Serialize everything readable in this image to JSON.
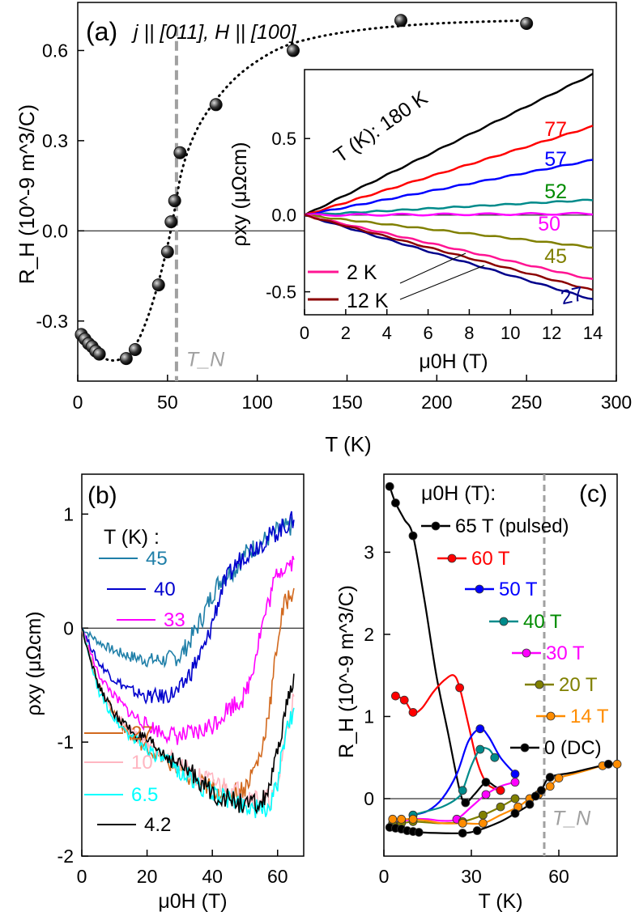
{
  "chart_data": [
    {
      "panel": "a",
      "type": "scatter",
      "panel_label": "(a)",
      "annotation": "j || [011], H || [100]",
      "xlabel": "T (K)",
      "ylabel": "R_H (10^-9 m^3/C)",
      "xlim": [
        0,
        300
      ],
      "ylim": [
        -0.5,
        0.76
      ],
      "xticks": [
        0,
        50,
        100,
        150,
        200,
        250,
        300
      ],
      "yticks": [
        -0.3,
        0.0,
        0.3,
        0.6
      ],
      "ytick_labels": [
        "-0.3",
        "0.0",
        "0.3",
        "0.6"
      ],
      "tn_label": "T_N",
      "tn_value": 55,
      "points": {
        "x": [
          2,
          4,
          6,
          8,
          10,
          12,
          27,
          32,
          45,
          50,
          52,
          54,
          57,
          77,
          120,
          180,
          250
        ],
        "y": [
          -0.345,
          -0.36,
          -0.375,
          -0.385,
          -0.4,
          -0.41,
          -0.425,
          -0.395,
          -0.18,
          -0.07,
          0.03,
          0.1,
          0.26,
          0.42,
          0.6,
          0.7,
          0.69
        ]
      },
      "fit_curve": {
        "x": [
          2,
          8,
          15,
          22,
          28,
          34,
          40,
          45,
          50,
          54,
          58,
          65,
          75,
          90,
          110,
          130,
          160,
          200,
          250
        ],
        "y": [
          -0.33,
          -0.39,
          -0.425,
          -0.43,
          -0.41,
          -0.36,
          -0.27,
          -0.17,
          -0.05,
          0.07,
          0.2,
          0.32,
          0.42,
          0.52,
          0.6,
          0.64,
          0.67,
          0.69,
          0.7
        ]
      }
    },
    {
      "panel": "a-inset",
      "type": "line",
      "xlabel": "μ0H (T)",
      "ylabel": "ρxy (μΩcm)",
      "xlim": [
        0,
        14
      ],
      "ylim": [
        -0.65,
        0.95
      ],
      "xticks": [
        0,
        2,
        4,
        6,
        8,
        10,
        12,
        14
      ],
      "yticks": [
        -0.5,
        0.0,
        0.5
      ],
      "ytick_labels": [
        "-0.5",
        "0.0",
        "0.5"
      ],
      "header_label": "T (K): 180 K",
      "series": [
        {
          "name": "180 K",
          "label": "",
          "color": "#000000",
          "end": 0.92
        },
        {
          "name": "77",
          "label": "77",
          "color": "#ff0000",
          "end": 0.58
        },
        {
          "name": "57",
          "label": "57",
          "color": "#0000ff",
          "end": 0.36
        },
        {
          "name": "52",
          "label": "52",
          "color": "#008b8b",
          "end": 0.1
        },
        {
          "name": "50",
          "label": "50",
          "color": "#ff00ff",
          "end": 0.01
        },
        {
          "name": "45",
          "label": "45",
          "color": "#808000",
          "end": -0.21
        },
        {
          "name": "27",
          "label": "27",
          "color": "#00008b",
          "end": -0.55
        },
        {
          "name": "2 K",
          "label": "2 K",
          "color": "#ff1493",
          "end": -0.42
        },
        {
          "name": "12 K",
          "label": "12 K",
          "color": "#8b0000",
          "end": -0.49
        }
      ]
    },
    {
      "panel": "b",
      "type": "line",
      "panel_label": "(b)",
      "legend_title": "T (K) :",
      "xlabel": "μ0H (T)",
      "ylabel": "ρxy (μΩcm)",
      "xlim": [
        0,
        68
      ],
      "ylim": [
        -2.0,
        1.35
      ],
      "xticks": [
        0,
        20,
        40,
        60
      ],
      "yticks": [
        -2,
        -1,
        0,
        1
      ],
      "ytick_labels": [
        "-2",
        "-1",
        "0",
        "1"
      ],
      "series": [
        {
          "name": "45",
          "color": "#1f7fa8",
          "x": [
            0,
            5,
            10,
            15,
            20,
            25,
            30,
            33,
            37,
            40,
            43,
            47,
            50,
            55,
            60,
            65
          ],
          "y": [
            0.0,
            -0.12,
            -0.2,
            -0.25,
            -0.28,
            -0.28,
            -0.25,
            -0.12,
            0.1,
            0.3,
            0.45,
            0.52,
            0.65,
            0.75,
            0.85,
            0.9
          ]
        },
        {
          "name": "40",
          "color": "#0000cd",
          "x": [
            0,
            5,
            10,
            15,
            20,
            25,
            30,
            35,
            38,
            40,
            43,
            47,
            50,
            55,
            60,
            65
          ],
          "y": [
            0.0,
            -0.3,
            -0.45,
            -0.55,
            -0.6,
            -0.6,
            -0.55,
            -0.3,
            -0.15,
            0.05,
            0.35,
            0.55,
            0.65,
            0.75,
            0.85,
            0.95
          ]
        },
        {
          "name": "33",
          "color": "#ff00ff",
          "x": [
            0,
            5,
            10,
            15,
            20,
            25,
            30,
            35,
            40,
            45,
            50,
            52,
            55,
            58,
            60,
            65
          ],
          "y": [
            0.0,
            -0.4,
            -0.6,
            -0.75,
            -0.85,
            -0.92,
            -0.95,
            -0.93,
            -0.85,
            -0.7,
            -0.6,
            -0.4,
            0.0,
            0.3,
            0.5,
            0.6
          ]
        },
        {
          "name": "27",
          "color": "#d2691e",
          "x": [
            0,
            5,
            10,
            15,
            20,
            25,
            30,
            35,
            40,
            45,
            50,
            55,
            58,
            60,
            62,
            65
          ],
          "y": [
            0.0,
            -0.5,
            -0.75,
            -0.95,
            -1.05,
            -1.15,
            -1.25,
            -1.35,
            -1.4,
            -1.45,
            -1.4,
            -1.1,
            -0.6,
            -0.1,
            0.2,
            0.35
          ]
        },
        {
          "name": "10",
          "color": "#ffb6c1",
          "x": [
            0,
            5,
            10,
            15,
            20,
            25,
            30,
            35,
            40,
            45,
            50,
            55,
            58,
            60,
            62,
            65
          ],
          "y": [
            0.0,
            -0.5,
            -0.75,
            -0.9,
            -1.0,
            -1.1,
            -1.2,
            -1.3,
            -1.35,
            -1.4,
            -1.45,
            -1.5,
            -1.5,
            -1.4,
            -1.0,
            -0.6
          ]
        },
        {
          "name": "6.5",
          "color": "#00ffff",
          "x": [
            0,
            5,
            10,
            15,
            20,
            25,
            30,
            35,
            40,
            45,
            50,
            55,
            58,
            60,
            62,
            65
          ],
          "y": [
            0.0,
            -0.55,
            -0.8,
            -0.95,
            -1.05,
            -1.15,
            -1.25,
            -1.35,
            -1.45,
            -1.5,
            -1.55,
            -1.6,
            -1.55,
            -1.35,
            -1.0,
            -0.7
          ]
        },
        {
          "name": "4.2",
          "color": "#000000",
          "x": [
            0,
            5,
            10,
            15,
            20,
            25,
            30,
            35,
            40,
            45,
            50,
            55,
            58,
            60,
            62,
            65
          ],
          "y": [
            0.0,
            -0.5,
            -0.75,
            -0.9,
            -1.0,
            -1.1,
            -1.2,
            -1.3,
            -1.45,
            -1.5,
            -1.55,
            -1.55,
            -1.35,
            -1.1,
            -0.8,
            -0.4
          ]
        }
      ]
    },
    {
      "panel": "c",
      "type": "line",
      "panel_label": "(c)",
      "legend_title": "μ0H (T):",
      "xlabel": "T (K)",
      "ylabel": "R_H (10^-9 m^3/C)",
      "xlim": [
        0,
        80
      ],
      "ylim": [
        -0.7,
        3.95
      ],
      "xticks": [
        0,
        30,
        60
      ],
      "yticks": [
        0,
        1,
        2,
        3
      ],
      "ytick_labels": [
        "0",
        "1",
        "2",
        "3"
      ],
      "tn_label": "T_N",
      "tn_value": 55,
      "series": [
        {
          "name": "65 T (pulsed)",
          "color": "#000000",
          "x": [
            2,
            4,
            10,
            28,
            35,
            40
          ],
          "y": [
            3.8,
            3.6,
            3.2,
            -0.05,
            0.2,
            0.1
          ],
          "cx": [
            2,
            4,
            7,
            10,
            14,
            18,
            22,
            26,
            28,
            31,
            35,
            38,
            40
          ],
          "cy": [
            3.8,
            3.6,
            3.4,
            3.2,
            2.4,
            1.5,
            0.8,
            0.1,
            -0.05,
            0.05,
            0.2,
            0.15,
            0.1
          ]
        },
        {
          "name": "60 T",
          "color": "#ff0000",
          "x": [
            4,
            7,
            10,
            26,
            40
          ],
          "y": [
            1.25,
            1.2,
            1.05,
            1.35,
            0.1
          ],
          "cx": [
            4,
            7,
            10,
            13,
            17,
            21,
            24,
            26,
            29,
            32,
            35,
            38,
            40
          ],
          "cy": [
            1.25,
            1.2,
            1.05,
            1.1,
            1.3,
            1.45,
            1.5,
            1.35,
            0.9,
            0.45,
            0.2,
            0.12,
            0.1
          ]
        },
        {
          "name": "50 T",
          "color": "#0000ff",
          "x": [
            10,
            33,
            45
          ],
          "y": [
            -0.2,
            0.85,
            0.3
          ],
          "cx": [
            10,
            15,
            20,
            25,
            29,
            33,
            36,
            40,
            45
          ],
          "cy": [
            -0.2,
            -0.15,
            0.0,
            0.3,
            0.7,
            0.85,
            0.75,
            0.5,
            0.3
          ]
        },
        {
          "name": "40 T",
          "color": "#008b8b",
          "x": [
            10,
            27,
            33,
            38
          ],
          "y": [
            -0.2,
            0.1,
            0.6,
            0.5
          ],
          "cx": [
            10,
            15,
            20,
            25,
            27,
            30,
            33,
            36,
            38
          ],
          "cy": [
            -0.2,
            -0.15,
            -0.1,
            0.0,
            0.1,
            0.4,
            0.6,
            0.6,
            0.5
          ]
        },
        {
          "name": "30 T",
          "color": "#ff00ff",
          "x": [
            3,
            6,
            10,
            25,
            35,
            45
          ],
          "y": [
            -0.3,
            -0.28,
            -0.25,
            -0.25,
            0.05,
            0.2
          ],
          "cx": [
            3,
            6,
            10,
            15,
            20,
            25,
            30,
            35,
            40,
            45
          ],
          "cy": [
            -0.3,
            -0.28,
            -0.25,
            -0.25,
            -0.27,
            -0.25,
            -0.1,
            0.05,
            0.15,
            0.2
          ]
        },
        {
          "name": "20 T",
          "color": "#808000",
          "x": [
            3,
            6,
            10,
            27,
            34,
            40,
            45
          ],
          "y": [
            -0.3,
            -0.3,
            -0.28,
            -0.28,
            -0.2,
            -0.1,
            0.0
          ],
          "cx": [
            3,
            6,
            10,
            15,
            20,
            27,
            34,
            40,
            45
          ],
          "cy": [
            -0.3,
            -0.3,
            -0.28,
            -0.29,
            -0.3,
            -0.28,
            -0.2,
            -0.1,
            0.0
          ]
        },
        {
          "name": "14 T",
          "color": "#ff8c00",
          "x": [
            3,
            6,
            10,
            27,
            34,
            46,
            50,
            53,
            57,
            60,
            75,
            80
          ],
          "y": [
            -0.25,
            -0.25,
            -0.25,
            -0.3,
            -0.3,
            -0.1,
            0.0,
            0.05,
            0.15,
            0.25,
            0.4,
            0.42
          ],
          "cx": [
            3,
            6,
            10,
            15,
            20,
            27,
            34,
            40,
            46,
            50,
            53,
            57,
            60,
            65,
            70,
            75,
            80
          ],
          "cy": [
            -0.25,
            -0.25,
            -0.25,
            -0.27,
            -0.3,
            -0.3,
            -0.3,
            -0.2,
            -0.1,
            0.0,
            0.05,
            0.15,
            0.25,
            0.3,
            0.35,
            0.4,
            0.42
          ]
        },
        {
          "name": "0 (DC)",
          "color": "#000000",
          "x": [
            2,
            4,
            6,
            8,
            10,
            12,
            27,
            32,
            45,
            50,
            52,
            54,
            57,
            77
          ],
          "y": [
            -0.35,
            -0.36,
            -0.37,
            -0.39,
            -0.4,
            -0.41,
            -0.42,
            -0.39,
            -0.18,
            -0.07,
            0.03,
            0.1,
            0.26,
            0.42
          ],
          "cx": [
            2,
            4,
            6,
            8,
            10,
            12,
            20,
            27,
            32,
            40,
            45,
            50,
            52,
            54,
            57,
            65,
            77,
            80
          ],
          "cy": [
            -0.35,
            -0.36,
            -0.37,
            -0.39,
            -0.4,
            -0.41,
            -0.42,
            -0.42,
            -0.39,
            -0.28,
            -0.18,
            -0.07,
            0.03,
            0.1,
            0.26,
            0.32,
            0.42,
            0.42
          ]
        }
      ]
    }
  ]
}
